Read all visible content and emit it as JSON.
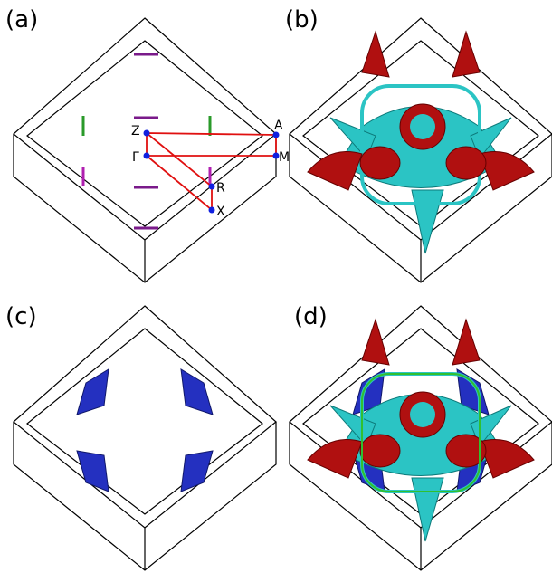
{
  "panels": [
    {
      "label": "(a)",
      "points": [
        "Z",
        "A",
        "Γ",
        "M",
        "R",
        "X"
      ]
    },
    {
      "label": "(b)"
    },
    {
      "label": "(c)"
    },
    {
      "label": "(d)"
    }
  ]
}
